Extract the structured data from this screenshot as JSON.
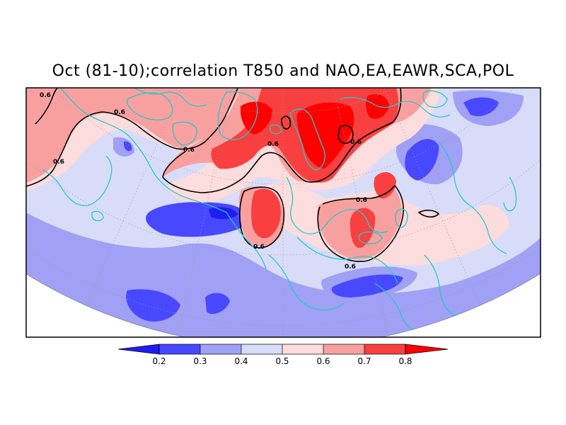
{
  "title": "Oct (81-10);correlation T850 and NAO,EA,EAWR,SCA,POL",
  "colors": {
    "c02": "#1e1ef0",
    "c03": "#4848ff",
    "c04": "#a0a0f5",
    "c05": "#d8dcf8",
    "c06": "#fcdcdc",
    "c07": "#f8a0a0",
    "c08": "#f84040",
    "c09": "#ff0000",
    "coast": "#28c8c8",
    "contour": "#000000"
  },
  "contour": {
    "label": "0.6"
  },
  "colorbar": {
    "ticks": [
      "0.2",
      "0.3",
      "0.4",
      "0.5",
      "0.6",
      "0.7",
      "0.8"
    ]
  }
}
